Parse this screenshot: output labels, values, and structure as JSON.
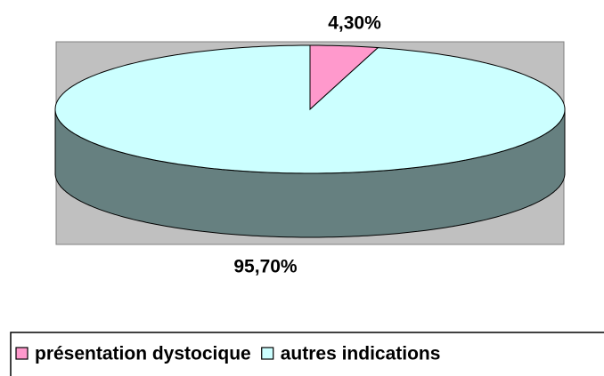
{
  "chart_data": {
    "type": "pie",
    "categories": [
      "présentation dystocique",
      "autres indications"
    ],
    "values": [
      4.3,
      95.7
    ],
    "value_labels": [
      "4,30%",
      "95,70%"
    ],
    "colors": [
      "#ff99cc",
      "#ccffff"
    ]
  }
}
